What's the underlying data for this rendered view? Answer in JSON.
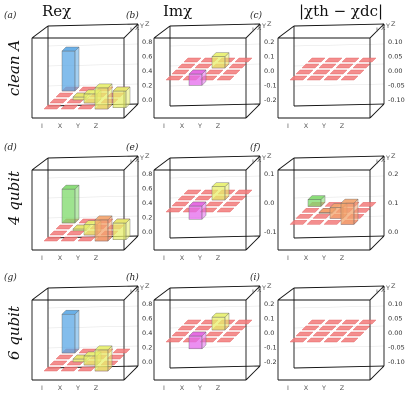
{
  "figure": {
    "column_titles": [
      "Reχ",
      "Imχ",
      "|χth − χdc|"
    ],
    "row_labels": [
      "clean A",
      "4 qubit",
      "6 qubit"
    ],
    "panel_letters": [
      "(a)",
      "(b)",
      "(c)",
      "(d)",
      "(e)",
      "(f)",
      "(g)",
      "(h)",
      "(i)"
    ]
  },
  "chart_data": [
    {
      "panel": "(a)",
      "type": "bar3d",
      "basis": [
        "I",
        "X",
        "Y",
        "Z"
      ],
      "zticks": [
        "0.0",
        "0.2",
        "0.4",
        "0.6",
        "0.8"
      ],
      "zlim": [
        0,
        0.95
      ],
      "bars": [
        {
          "i": 0,
          "j": 0,
          "value": 0.95,
          "color": "blue"
        },
        {
          "i": 1,
          "j": 1,
          "value": 0.05,
          "color": "yellow"
        },
        {
          "i": 2,
          "j": 2,
          "value": 0.05,
          "color": "yellow"
        },
        {
          "i": 3,
          "j": 3,
          "value": 0.05,
          "color": "yellow"
        },
        {
          "i": 0,
          "j": 3,
          "value": 0.02,
          "color": "yellow"
        }
      ]
    },
    {
      "panel": "(b)",
      "type": "bar3d",
      "basis": [
        "I",
        "X",
        "Y",
        "Z"
      ],
      "zticks": [
        "-0.2",
        "-0.1",
        "0.0",
        "0.1",
        "0.2"
      ],
      "zlim": [
        -0.2,
        0.2
      ],
      "bars": [
        {
          "i": 1,
          "j": 2,
          "value": 0.12,
          "color": "yellow"
        },
        {
          "i": 2,
          "j": 1,
          "value": -0.12,
          "color": "magenta"
        }
      ]
    },
    {
      "panel": "(c)",
      "type": "bar3d",
      "basis": [
        "I",
        "X",
        "Y",
        "Z"
      ],
      "zticks": [
        "-0.10",
        "-0.05",
        "0.00",
        "0.05",
        "0.10"
      ],
      "zlim": [
        -0.1,
        0.1
      ],
      "bars": []
    },
    {
      "panel": "(d)",
      "type": "bar3d",
      "basis": [
        "I",
        "X",
        "Y",
        "Z"
      ],
      "zticks": [
        "0.0",
        "0.2",
        "0.4",
        "0.6",
        "0.8"
      ],
      "zlim": [
        0,
        0.95
      ],
      "bars": [
        {
          "i": 0,
          "j": 0,
          "value": 0.85,
          "color": "green"
        },
        {
          "i": 1,
          "j": 1,
          "value": 0.07,
          "color": "yellow"
        },
        {
          "i": 2,
          "j": 2,
          "value": 0.07,
          "color": "yellow"
        },
        {
          "i": 3,
          "j": 3,
          "value": 0.05,
          "color": "orange"
        },
        {
          "i": 0,
          "j": 3,
          "value": 0.02,
          "color": "yellow"
        }
      ]
    },
    {
      "panel": "(e)",
      "type": "bar3d",
      "basis": [
        "I",
        "X",
        "Y",
        "Z"
      ],
      "zticks": [
        "-0.1",
        "0.0",
        "0.1"
      ],
      "zlim": [
        -0.15,
        0.15
      ],
      "bars": [
        {
          "i": 1,
          "j": 2,
          "value": 0.1,
          "color": "yellow"
        },
        {
          "i": 2,
          "j": 1,
          "value": -0.1,
          "color": "magenta"
        }
      ]
    },
    {
      "panel": "(f)",
      "type": "bar3d",
      "basis": [
        "I",
        "X",
        "Y",
        "Z"
      ],
      "zticks": [
        "0.0",
        "0.1",
        "0.2"
      ],
      "zlim": [
        -0.1,
        0.25
      ],
      "bars": [
        {
          "i": 0,
          "j": 0,
          "value": 0.15,
          "color": "green"
        },
        {
          "i": 1,
          "j": 1,
          "value": 0.03,
          "color": "orange"
        },
        {
          "i": 2,
          "j": 2,
          "value": 0.03,
          "color": "orange"
        },
        {
          "i": 3,
          "j": 3,
          "value": 0.02,
          "color": "orange"
        }
      ]
    },
    {
      "panel": "(g)",
      "type": "bar3d",
      "basis": [
        "I",
        "X",
        "Y",
        "Z"
      ],
      "zticks": [
        "0.0",
        "0.2",
        "0.4",
        "0.6",
        "0.8"
      ],
      "zlim": [
        0,
        0.95
      ],
      "bars": [
        {
          "i": 0,
          "j": 0,
          "value": 0.93,
          "color": "blue"
        },
        {
          "i": 1,
          "j": 1,
          "value": 0.05,
          "color": "yellow"
        },
        {
          "i": 2,
          "j": 2,
          "value": 0.05,
          "color": "yellow"
        },
        {
          "i": 3,
          "j": 3,
          "value": 0.05,
          "color": "yellow"
        }
      ]
    },
    {
      "panel": "(h)",
      "type": "bar3d",
      "basis": [
        "I",
        "X",
        "Y",
        "Z"
      ],
      "zticks": [
        "-0.2",
        "-0.1",
        "0.0",
        "0.1",
        "0.2"
      ],
      "zlim": [
        -0.2,
        0.2
      ],
      "bars": [
        {
          "i": 1,
          "j": 2,
          "value": 0.13,
          "color": "yellow"
        },
        {
          "i": 2,
          "j": 1,
          "value": -0.13,
          "color": "magenta"
        }
      ]
    },
    {
      "panel": "(i)",
      "type": "bar3d",
      "basis": [
        "I",
        "X",
        "Y",
        "Z"
      ],
      "zticks": [
        "-0.10",
        "-0.05",
        "0.00",
        "0.05",
        "0.10"
      ],
      "zlim": [
        -0.1,
        0.1
      ],
      "bars": []
    }
  ],
  "colors": {
    "blue": "#5aa7e6",
    "green": "#7ed96a",
    "yellow": "#e7ef6b",
    "magenta": "#e469ec",
    "orange": "#f3a36b",
    "red": "#f27a7a"
  }
}
